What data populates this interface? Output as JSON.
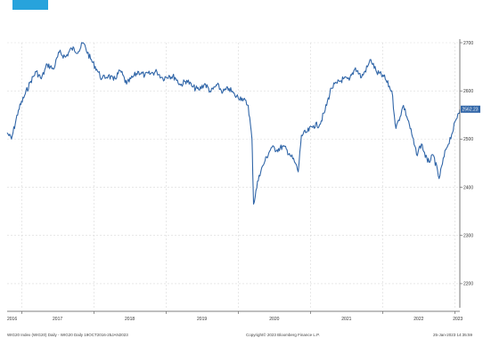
{
  "colors": {
    "line": "#3166a8",
    "grid": "#d9d9d9",
    "axis": "#555555",
    "label_bg": "#3166a8",
    "top_accent": "#27a3dc"
  },
  "chart_data": {
    "type": "line",
    "ylim": [
      2150,
      2700
    ],
    "y_ticks": [
      {
        "value": 2200,
        "label": "2200"
      },
      {
        "value": 2300,
        "label": "2300"
      },
      {
        "value": 2400,
        "label": "2400"
      },
      {
        "value": 2500,
        "label": "2500"
      },
      {
        "value": 2600,
        "label": "2600"
      },
      {
        "value": 2700,
        "label": "2700"
      }
    ],
    "x_range": [
      "2016-10-19",
      "2023-01-25"
    ],
    "x_ticks": [
      {
        "date": "2016-10-19",
        "label": "2016"
      },
      {
        "date": "2017-07-01",
        "label": "2017"
      },
      {
        "date": "2018-07-01",
        "label": "2018"
      },
      {
        "date": "2019-07-01",
        "label": "2019"
      },
      {
        "date": "2020-07-01",
        "label": "2020"
      },
      {
        "date": "2021-07-01",
        "label": "2021"
      },
      {
        "date": "2022-07-01",
        "label": "2022"
      },
      {
        "date": "2023-01-15",
        "label": "2023"
      }
    ],
    "x_year_boundaries": [
      "2017-01-01",
      "2018-01-01",
      "2019-01-01",
      "2020-01-01",
      "2021-01-01",
      "2022-01-01",
      "2023-01-01"
    ],
    "last_value_label": "2562.23",
    "series": [
      {
        "points": [
          [
            "2016-10-19",
            2513
          ],
          [
            "2016-11-10",
            2500
          ],
          [
            "2016-12-15",
            2560
          ],
          [
            "2017-01-15",
            2590
          ],
          [
            "2017-02-15",
            2620
          ],
          [
            "2017-03-15",
            2640
          ],
          [
            "2017-04-10",
            2625
          ],
          [
            "2017-05-10",
            2655
          ],
          [
            "2017-06-10",
            2645
          ],
          [
            "2017-07-10",
            2680
          ],
          [
            "2017-08-10",
            2670
          ],
          [
            "2017-09-10",
            2688
          ],
          [
            "2017-10-15",
            2682
          ],
          [
            "2017-11-07",
            2700
          ],
          [
            "2017-12-15",
            2666
          ],
          [
            "2018-01-15",
            2645
          ],
          [
            "2018-02-10",
            2625
          ],
          [
            "2018-03-15",
            2632
          ],
          [
            "2018-04-10",
            2622
          ],
          [
            "2018-05-15",
            2642
          ],
          [
            "2018-06-15",
            2614
          ],
          [
            "2018-07-15",
            2628
          ],
          [
            "2018-08-15",
            2640
          ],
          [
            "2018-09-15",
            2632
          ],
          [
            "2018-10-15",
            2636
          ],
          [
            "2018-11-15",
            2640
          ],
          [
            "2018-12-15",
            2626
          ],
          [
            "2019-01-15",
            2632
          ],
          [
            "2019-02-15",
            2628
          ],
          [
            "2019-03-15",
            2612
          ],
          [
            "2019-04-15",
            2622
          ],
          [
            "2019-05-15",
            2608
          ],
          [
            "2019-06-15",
            2602
          ],
          [
            "2019-07-15",
            2615
          ],
          [
            "2019-08-15",
            2598
          ],
          [
            "2019-09-15",
            2612
          ],
          [
            "2019-10-15",
            2598
          ],
          [
            "2019-11-15",
            2605
          ],
          [
            "2019-12-15",
            2590
          ],
          [
            "2020-01-20",
            2585
          ],
          [
            "2020-02-20",
            2570
          ],
          [
            "2020-03-10",
            2500
          ],
          [
            "2020-03-18",
            2365
          ],
          [
            "2020-04-15",
            2425
          ],
          [
            "2020-05-15",
            2455
          ],
          [
            "2020-06-15",
            2482
          ],
          [
            "2020-07-15",
            2478
          ],
          [
            "2020-08-15",
            2485
          ],
          [
            "2020-09-15",
            2470
          ],
          [
            "2020-10-15",
            2450
          ],
          [
            "2020-10-30",
            2432
          ],
          [
            "2020-11-15",
            2508
          ],
          [
            "2020-12-15",
            2515
          ],
          [
            "2021-01-15",
            2528
          ],
          [
            "2021-02-15",
            2530
          ],
          [
            "2021-03-15",
            2560
          ],
          [
            "2021-04-15",
            2606
          ],
          [
            "2021-05-15",
            2616
          ],
          [
            "2021-06-15",
            2625
          ],
          [
            "2021-07-15",
            2622
          ],
          [
            "2021-08-15",
            2648
          ],
          [
            "2021-09-15",
            2628
          ],
          [
            "2021-10-15",
            2650
          ],
          [
            "2021-11-01",
            2665
          ],
          [
            "2021-12-01",
            2638
          ],
          [
            "2022-01-05",
            2630
          ],
          [
            "2022-02-15",
            2600
          ],
          [
            "2022-03-08",
            2522
          ],
          [
            "2022-04-15",
            2570
          ],
          [
            "2022-05-15",
            2530
          ],
          [
            "2022-06-20",
            2468
          ],
          [
            "2022-07-15",
            2490
          ],
          [
            "2022-08-15",
            2452
          ],
          [
            "2022-09-15",
            2465
          ],
          [
            "2022-10-12",
            2418
          ],
          [
            "2022-11-15",
            2478
          ],
          [
            "2022-12-15",
            2510
          ],
          [
            "2023-01-15",
            2552
          ],
          [
            "2023-01-25",
            2562
          ]
        ]
      }
    ]
  },
  "footer": {
    "left": "WIG20 Index (WIG20) Daily - WIG20   Daily 19OCT2016-25JAN2023",
    "center": "Copyright© 2023 Bloomberg Finance L.P.",
    "right": "25-Jan-2023 14:35:59"
  }
}
